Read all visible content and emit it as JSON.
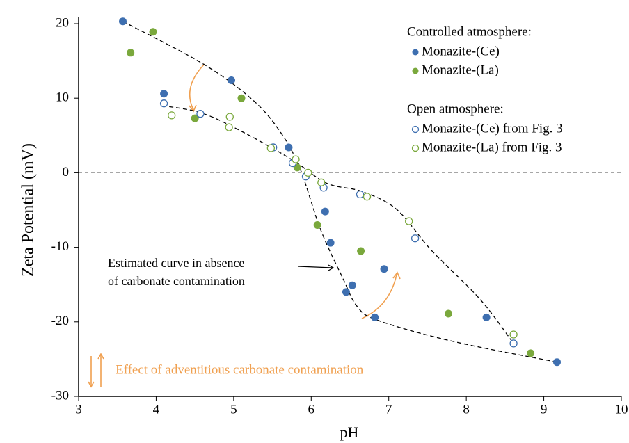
{
  "chart_data": {
    "type": "scatter",
    "x_label": "pH",
    "y_label": "Zeta Potential (mV)",
    "xlim": [
      3,
      10
    ],
    "ylim": [
      -30,
      20
    ],
    "xticks": [
      3,
      4,
      5,
      6,
      7,
      8,
      9,
      10
    ],
    "yticks": [
      -30,
      -20,
      -10,
      0,
      10,
      20
    ],
    "zero_line": true,
    "legend_groups": [
      "Controlled atmosphere:",
      "Open atmosphere:"
    ],
    "series": [
      {
        "name": "Monazite-(Ce)",
        "group": 0,
        "marker": "filled",
        "color": "#3e6fb0",
        "x": [
          3.57,
          4.1,
          4.97,
          5.71,
          6.18,
          6.25,
          6.53,
          6.45,
          6.82,
          6.94,
          8.26,
          9.17
        ],
        "values": [
          20.3,
          10.6,
          12.4,
          3.4,
          -5.2,
          -9.4,
          -15.1,
          -16.0,
          -19.4,
          -12.9,
          -19.4,
          -25.4
        ]
      },
      {
        "name": "Monazite-(La)",
        "group": 0,
        "marker": "filled",
        "color": "#7aa83c",
        "x": [
          3.67,
          3.96,
          4.5,
          5.1,
          5.82,
          6.08,
          6.64,
          7.77,
          8.83
        ],
        "values": [
          16.1,
          18.9,
          7.3,
          10.0,
          0.7,
          -7.0,
          -10.5,
          -18.9,
          -24.2
        ]
      },
      {
        "name": "Monazite-(Ce) from Fig. 3",
        "group": 1,
        "marker": "open",
        "color": "#3e6fb0",
        "x": [
          4.1,
          4.57,
          5.51,
          5.76,
          5.93,
          6.16,
          6.63,
          7.34,
          8.61
        ],
        "values": [
          9.3,
          7.9,
          3.4,
          1.3,
          -0.5,
          -2.0,
          -2.9,
          -8.8,
          -22.9
        ]
      },
      {
        "name": "Monazite-(La) from Fig. 3",
        "group": 1,
        "marker": "open",
        "color": "#7aa83c",
        "x": [
          4.2,
          4.95,
          4.94,
          5.48,
          5.8,
          5.96,
          6.13,
          6.72,
          7.26,
          8.61
        ],
        "values": [
          7.7,
          7.5,
          6.1,
          3.3,
          1.8,
          0,
          -1.3,
          -3.2,
          -6.5,
          -21.7
        ]
      }
    ],
    "curves": [
      {
        "x": [
          3.57,
          4.59,
          5.22,
          5.58,
          5.85,
          6.12,
          6.41,
          6.59,
          6.86,
          7.82,
          9.17
        ],
        "values": [
          20.3,
          14.7,
          10.0,
          5.8,
          0.7,
          -7.6,
          -14.2,
          -17.9,
          -19.8,
          -22.6,
          -25.4
        ]
      },
      {
        "x": [
          4.08,
          4.59,
          5.13,
          5.76,
          6.2,
          6.65,
          7.1,
          7.55,
          8.18,
          8.61
        ],
        "values": [
          9.0,
          8.0,
          5.4,
          1.7,
          -1.4,
          -2.5,
          -4.9,
          -10.4,
          -17.0,
          -22.9
        ]
      }
    ],
    "annotations": [
      "Estimated curve in absence",
      "of carbonate contamination",
      "Effect of adventitious carbonate contamination"
    ]
  }
}
